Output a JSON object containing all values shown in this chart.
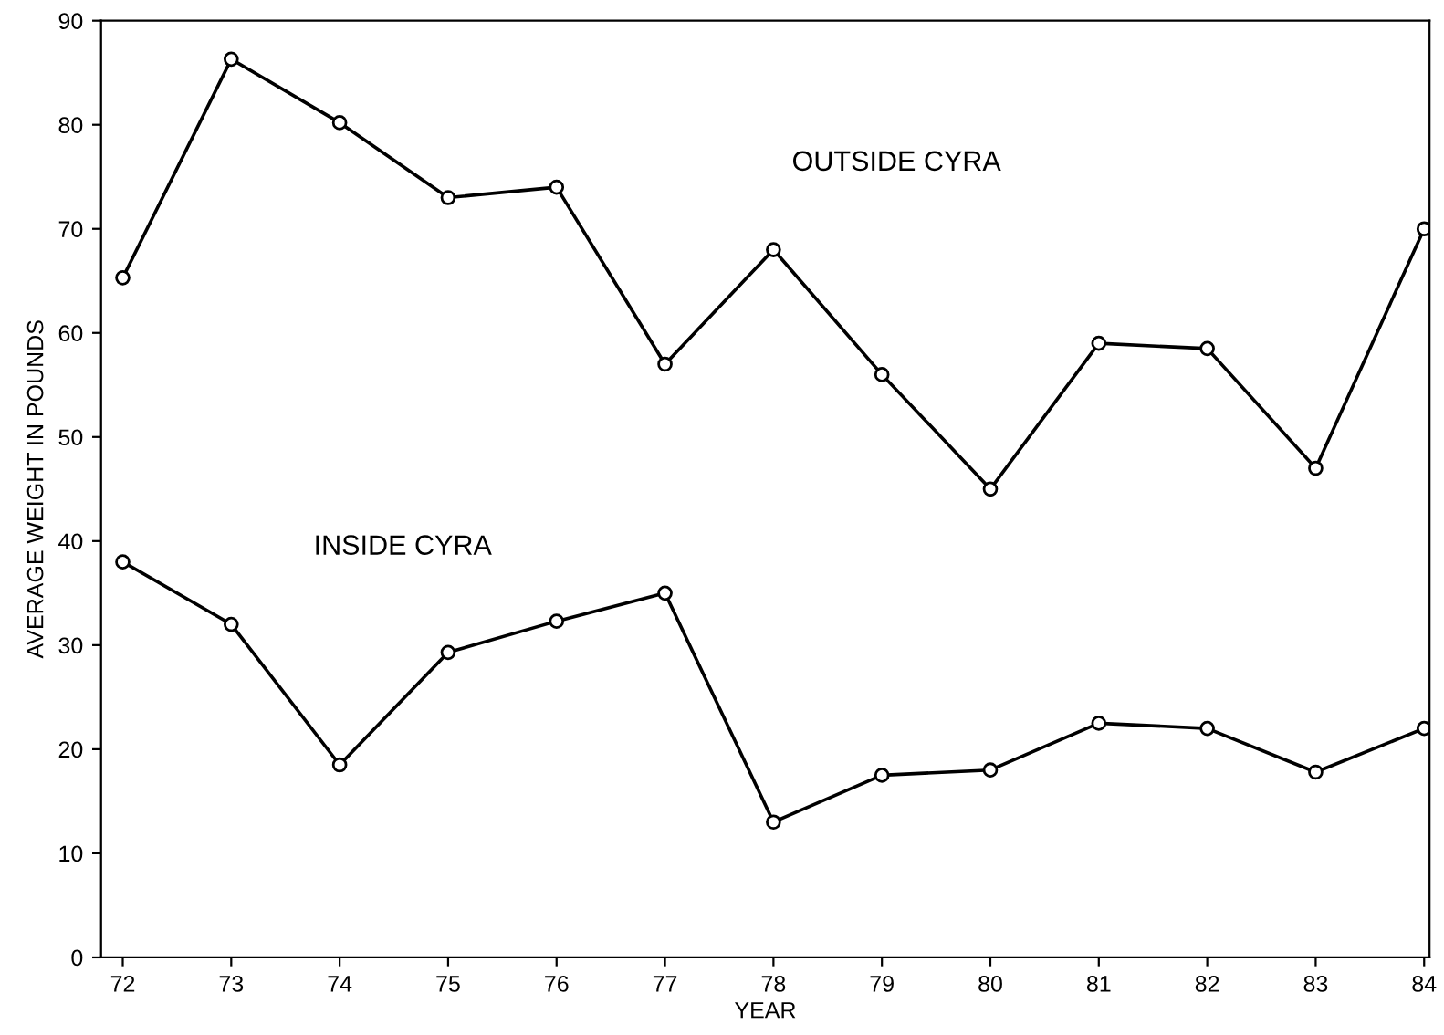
{
  "chart_data": {
    "type": "line",
    "xlabel": "YEAR",
    "ylabel": "AVERAGE WEIGHT IN POUNDS",
    "x": [
      72,
      73,
      74,
      75,
      76,
      77,
      78,
      79,
      80,
      81,
      82,
      83,
      84
    ],
    "series": [
      {
        "name": "OUTSIDE CYRA",
        "color": "#000000",
        "values": [
          65.3,
          86.3,
          80.2,
          73,
          74,
          57,
          68,
          56,
          45,
          59,
          58.5,
          47,
          70
        ]
      },
      {
        "name": "INSIDE CYRA",
        "color": "#000000",
        "values": [
          38,
          32,
          18.5,
          29.3,
          32.3,
          35,
          13,
          17.5,
          18,
          22.5,
          22,
          17.8,
          22
        ]
      }
    ],
    "xlim": [
      71.8,
      84.05
    ],
    "ylim": [
      0,
      90
    ],
    "xticks": [
      72,
      73,
      74,
      75,
      76,
      77,
      78,
      79,
      80,
      81,
      82,
      83,
      84
    ],
    "yticks": [
      0,
      10,
      20,
      30,
      40,
      50,
      60,
      70,
      80,
      90
    ],
    "marker": "circle",
    "line_style": "solid",
    "grid": false,
    "legend": false
  }
}
